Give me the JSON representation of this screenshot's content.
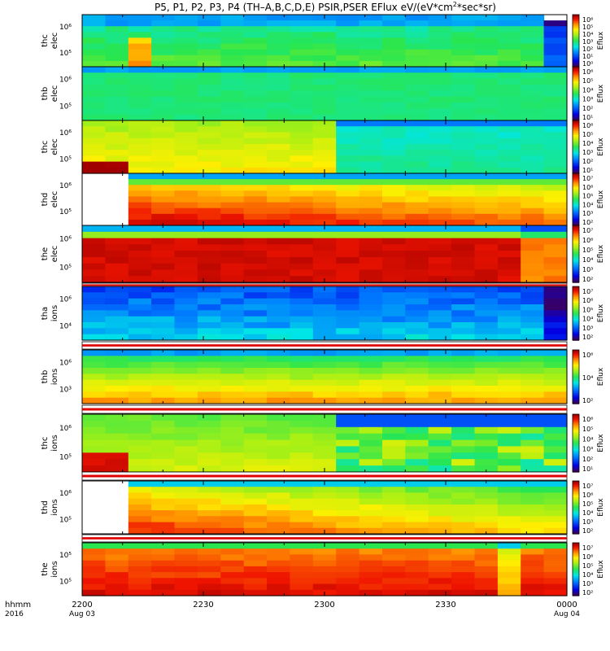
{
  "title_plain": "P5, P1, P2, P3, P4 (TH–A,B,C,D,E) PSIR,PSER EFlux eV/(eV*cm",
  "title_sup": "2",
  "title_tail": "*sec*sr)",
  "bottom_labels": {
    "units_top": "hhmm",
    "units_bottom": "2016"
  },
  "chart_data": {
    "type": "heatmap",
    "x_ticks": [
      {
        "label": "2200",
        "sub": "Aug 03"
      },
      {
        "label": "2230",
        "sub": ""
      },
      {
        "label": "2300",
        "sub": ""
      },
      {
        "label": "2330",
        "sub": ""
      },
      {
        "label": "0000",
        "sub": "Aug 04"
      }
    ],
    "panels": [
      {
        "probe": "thc",
        "species": "elec",
        "yticks": [
          "10⁶",
          "10⁵"
        ],
        "cbar_label": "Eflux",
        "cbar_ticks": [
          "10⁶",
          "10⁵",
          "10⁴",
          "10³",
          "10²",
          "10¹",
          "10⁰"
        ]
      },
      {
        "probe": "thb",
        "species": "elec",
        "yticks": [
          "10⁶",
          "10⁵"
        ],
        "cbar_label": "Eflux",
        "cbar_ticks": [
          "10⁶",
          "10⁵",
          "10⁴",
          "10³",
          "10²",
          "10¹"
        ]
      },
      {
        "probe": "thc",
        "species": "elec",
        "yticks": [
          "10⁶",
          "10⁵"
        ],
        "cbar_label": "Eflux",
        "cbar_ticks": [
          "10⁶",
          "10⁵",
          "10⁴",
          "10³",
          "10²",
          "10¹"
        ]
      },
      {
        "probe": "thd",
        "species": "elec",
        "yticks": [
          "10⁶",
          "10⁵"
        ],
        "cbar_label": "Eflux",
        "cbar_ticks": [
          "10⁷",
          "10⁶",
          "10⁵",
          "10⁴",
          "10³",
          "10²"
        ]
      },
      {
        "probe": "the",
        "species": "elec",
        "yticks": [
          "10⁶",
          "10⁵"
        ],
        "cbar_label": "Eflux",
        "cbar_ticks": [
          "10⁷",
          "10⁶",
          "10⁵",
          "10⁴",
          "10³",
          "10²"
        ]
      },
      {
        "probe": "tha",
        "species": "ions",
        "yticks": [
          "10⁶",
          "10⁴"
        ],
        "cbar_label": "Eflux",
        "cbar_ticks": [
          "10⁷",
          "10⁶",
          "10⁵",
          "10⁴",
          "10³",
          "10²"
        ]
      },
      {
        "probe": "thb",
        "species": "ions",
        "yticks": [
          "10⁶",
          "10³"
        ],
        "cbar_label": "Eflux",
        "cbar_ticks": [
          "10⁶",
          "10⁴",
          "10²"
        ]
      },
      {
        "probe": "thc",
        "species": "ions",
        "yticks": [
          "10⁶",
          "10⁵"
        ],
        "cbar_label": "Eflux",
        "cbar_ticks": [
          "10⁶",
          "10⁵",
          "10⁴",
          "10³",
          "10²",
          "10¹"
        ]
      },
      {
        "probe": "thd",
        "species": "ions",
        "yticks": [
          "10⁶",
          "10⁵"
        ],
        "cbar_label": "Eflux",
        "cbar_ticks": [
          "10⁷",
          "10⁶",
          "10⁵",
          "10⁴",
          "10³",
          "10²"
        ]
      },
      {
        "probe": "the",
        "species": "ions",
        "yticks": [
          "10⁵",
          "10⁵"
        ],
        "cbar_label": "Eflux",
        "cbar_ticks": [
          "10⁷",
          "10⁶",
          "10⁵",
          "10⁴",
          "10³",
          "10²"
        ]
      }
    ]
  }
}
